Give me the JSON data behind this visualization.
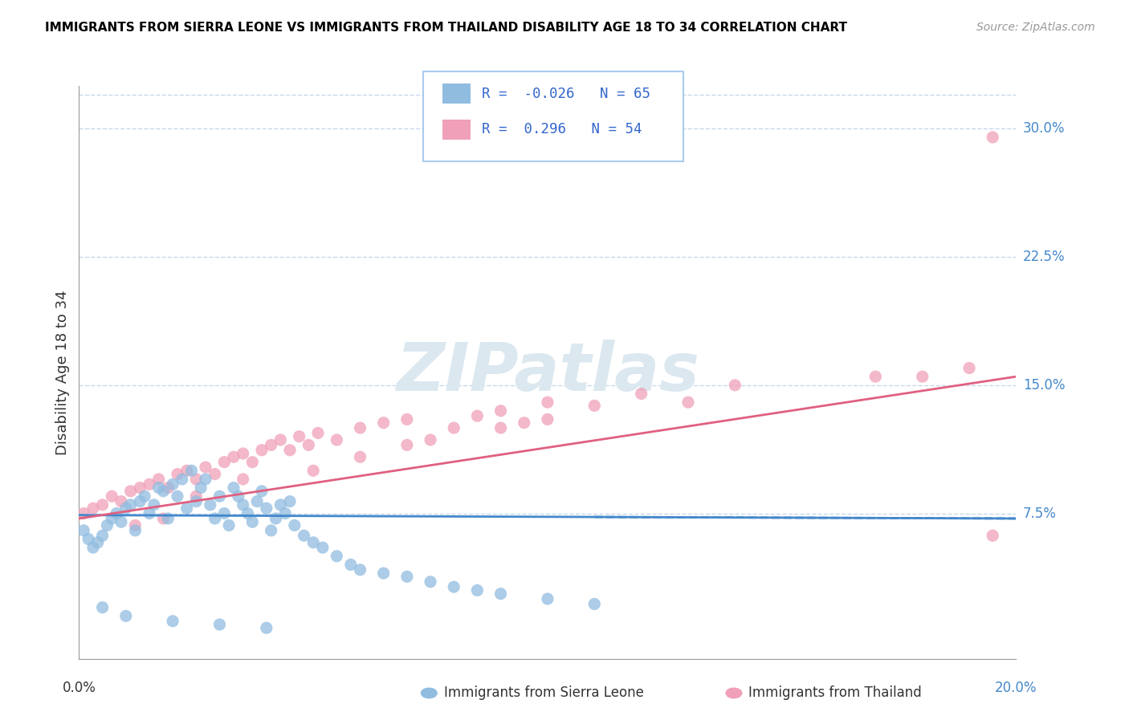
{
  "title": "IMMIGRANTS FROM SIERRA LEONE VS IMMIGRANTS FROM THAILAND DISABILITY AGE 18 TO 34 CORRELATION CHART",
  "source": "Source: ZipAtlas.com",
  "ylabel": "Disability Age 18 to 34",
  "legend_entries": [
    {
      "label": "Immigrants from Sierra Leone",
      "R": -0.026,
      "N": 65,
      "color": "#a8c8e8"
    },
    {
      "label": "Immigrants from Thailand",
      "R": 0.296,
      "N": 54,
      "color": "#f4a8c0"
    }
  ],
  "y_ticks": [
    0.075,
    0.15,
    0.225,
    0.3
  ],
  "y_tick_labels": [
    "7.5%",
    "15.0%",
    "22.5%",
    "30.0%"
  ],
  "x_min": 0.0,
  "x_max": 0.2,
  "y_min": -0.01,
  "y_max": 0.325,
  "background_color": "#ffffff",
  "grid_color": "#c8d8ea",
  "watermark_color": "#dce8f0",
  "sierra_leone_color": "#90bce0",
  "thailand_color": "#f0a0b8",
  "sierra_leone_line_color": "#4488cc",
  "thailand_line_color": "#e06080",
  "sierra_leone_scatter": {
    "x": [
      0.001,
      0.002,
      0.003,
      0.004,
      0.005,
      0.006,
      0.007,
      0.008,
      0.009,
      0.01,
      0.011,
      0.012,
      0.013,
      0.014,
      0.015,
      0.016,
      0.017,
      0.018,
      0.019,
      0.02,
      0.021,
      0.022,
      0.023,
      0.024,
      0.025,
      0.026,
      0.027,
      0.028,
      0.029,
      0.03,
      0.031,
      0.032,
      0.033,
      0.034,
      0.035,
      0.036,
      0.037,
      0.038,
      0.039,
      0.04,
      0.041,
      0.042,
      0.043,
      0.044,
      0.045,
      0.046,
      0.048,
      0.05,
      0.052,
      0.055,
      0.058,
      0.06,
      0.065,
      0.07,
      0.075,
      0.08,
      0.085,
      0.09,
      0.1,
      0.11,
      0.005,
      0.01,
      0.02,
      0.03,
      0.04
    ],
    "y": [
      0.065,
      0.06,
      0.055,
      0.058,
      0.062,
      0.068,
      0.072,
      0.075,
      0.07,
      0.078,
      0.08,
      0.065,
      0.082,
      0.085,
      0.075,
      0.08,
      0.09,
      0.088,
      0.072,
      0.092,
      0.085,
      0.095,
      0.078,
      0.1,
      0.082,
      0.09,
      0.095,
      0.08,
      0.072,
      0.085,
      0.075,
      0.068,
      0.09,
      0.085,
      0.08,
      0.075,
      0.07,
      0.082,
      0.088,
      0.078,
      0.065,
      0.072,
      0.08,
      0.075,
      0.082,
      0.068,
      0.062,
      0.058,
      0.055,
      0.05,
      0.045,
      0.042,
      0.04,
      0.038,
      0.035,
      0.032,
      0.03,
      0.028,
      0.025,
      0.022,
      0.02,
      0.015,
      0.012,
      0.01,
      0.008
    ]
  },
  "thailand_scatter": {
    "x": [
      0.001,
      0.003,
      0.005,
      0.007,
      0.009,
      0.011,
      0.013,
      0.015,
      0.017,
      0.019,
      0.021,
      0.023,
      0.025,
      0.027,
      0.029,
      0.031,
      0.033,
      0.035,
      0.037,
      0.039,
      0.041,
      0.043,
      0.045,
      0.047,
      0.049,
      0.051,
      0.055,
      0.06,
      0.065,
      0.07,
      0.075,
      0.08,
      0.085,
      0.09,
      0.095,
      0.1,
      0.11,
      0.12,
      0.14,
      0.17,
      0.19,
      0.195,
      0.012,
      0.018,
      0.025,
      0.035,
      0.05,
      0.06,
      0.07,
      0.09,
      0.1,
      0.13,
      0.18,
      0.195
    ],
    "y": [
      0.075,
      0.078,
      0.08,
      0.085,
      0.082,
      0.088,
      0.09,
      0.092,
      0.095,
      0.09,
      0.098,
      0.1,
      0.095,
      0.102,
      0.098,
      0.105,
      0.108,
      0.11,
      0.105,
      0.112,
      0.115,
      0.118,
      0.112,
      0.12,
      0.115,
      0.122,
      0.118,
      0.125,
      0.128,
      0.13,
      0.118,
      0.125,
      0.132,
      0.135,
      0.128,
      0.14,
      0.138,
      0.145,
      0.15,
      0.155,
      0.16,
      0.062,
      0.068,
      0.072,
      0.085,
      0.095,
      0.1,
      0.108,
      0.115,
      0.125,
      0.13,
      0.14,
      0.155,
      0.295
    ]
  },
  "sl_line": {
    "x0": 0.0,
    "x1": 0.2,
    "y0": 0.074,
    "y1": 0.072
  },
  "th_line": {
    "x0": 0.0,
    "x1": 0.2,
    "y0": 0.072,
    "y1": 0.155
  }
}
